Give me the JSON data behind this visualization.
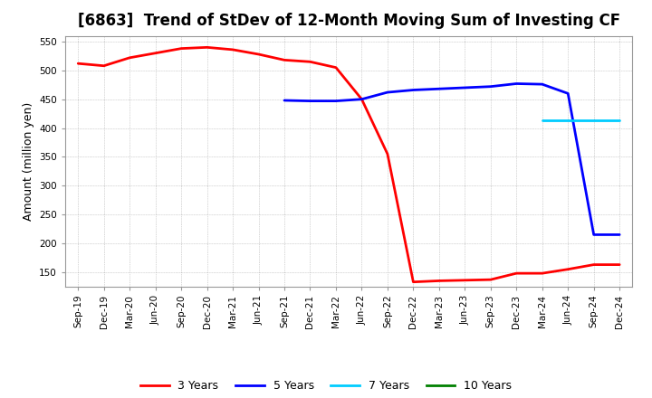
{
  "title": "[6863]  Trend of StDev of 12-Month Moving Sum of Investing CF",
  "ylabel": "Amount (million yen)",
  "ylim": [
    125,
    560
  ],
  "yticks": [
    150,
    200,
    250,
    300,
    350,
    400,
    450,
    500,
    550
  ],
  "background_color": "#ffffff",
  "grid_color": "#888888",
  "series": {
    "3years": {
      "color": "#ff0000",
      "label": "3 Years",
      "x": [
        "Sep-19",
        "Dec-19",
        "Mar-20",
        "Jun-20",
        "Sep-20",
        "Dec-20",
        "Mar-21",
        "Jun-21",
        "Sep-21",
        "Dec-21",
        "Mar-22",
        "Jun-22",
        "Sep-22",
        "Dec-22",
        "Mar-23",
        "Jun-23",
        "Sep-23",
        "Dec-23",
        "Mar-24",
        "Jun-24",
        "Sep-24",
        "Dec-24"
      ],
      "y": [
        512,
        508,
        522,
        530,
        538,
        540,
        536,
        528,
        518,
        515,
        505,
        450,
        355,
        133,
        135,
        136,
        137,
        148,
        148,
        155,
        163,
        163
      ]
    },
    "5years": {
      "color": "#0000ff",
      "label": "5 Years",
      "x": [
        "Sep-21",
        "Dec-21",
        "Mar-22",
        "Jun-22",
        "Sep-22",
        "Dec-22",
        "Mar-23",
        "Jun-23",
        "Sep-23",
        "Dec-23",
        "Mar-24",
        "Jun-24",
        "Sep-24",
        "Dec-24"
      ],
      "y": [
        448,
        447,
        447,
        450,
        462,
        466,
        468,
        470,
        472,
        477,
        476,
        460,
        215,
        215
      ]
    },
    "7years": {
      "color": "#00ccff",
      "label": "7 Years",
      "x": [
        "Mar-24",
        "Jun-24",
        "Sep-24",
        "Dec-24"
      ],
      "y": [
        413,
        413,
        413,
        413
      ]
    },
    "10years": {
      "color": "#008000",
      "label": "10 Years",
      "x": [],
      "y": []
    }
  },
  "xtick_labels": [
    "Sep-19",
    "Dec-19",
    "Mar-20",
    "Jun-20",
    "Sep-20",
    "Dec-20",
    "Mar-21",
    "Jun-21",
    "Sep-21",
    "Dec-21",
    "Mar-22",
    "Jun-22",
    "Sep-22",
    "Dec-22",
    "Mar-23",
    "Jun-23",
    "Sep-23",
    "Dec-23",
    "Mar-24",
    "Jun-24",
    "Sep-24",
    "Dec-24"
  ],
  "title_fontsize": 12,
  "tick_label_fontsize": 7.5,
  "axis_label_fontsize": 9,
  "legend_fontsize": 9,
  "line_width": 2.0
}
